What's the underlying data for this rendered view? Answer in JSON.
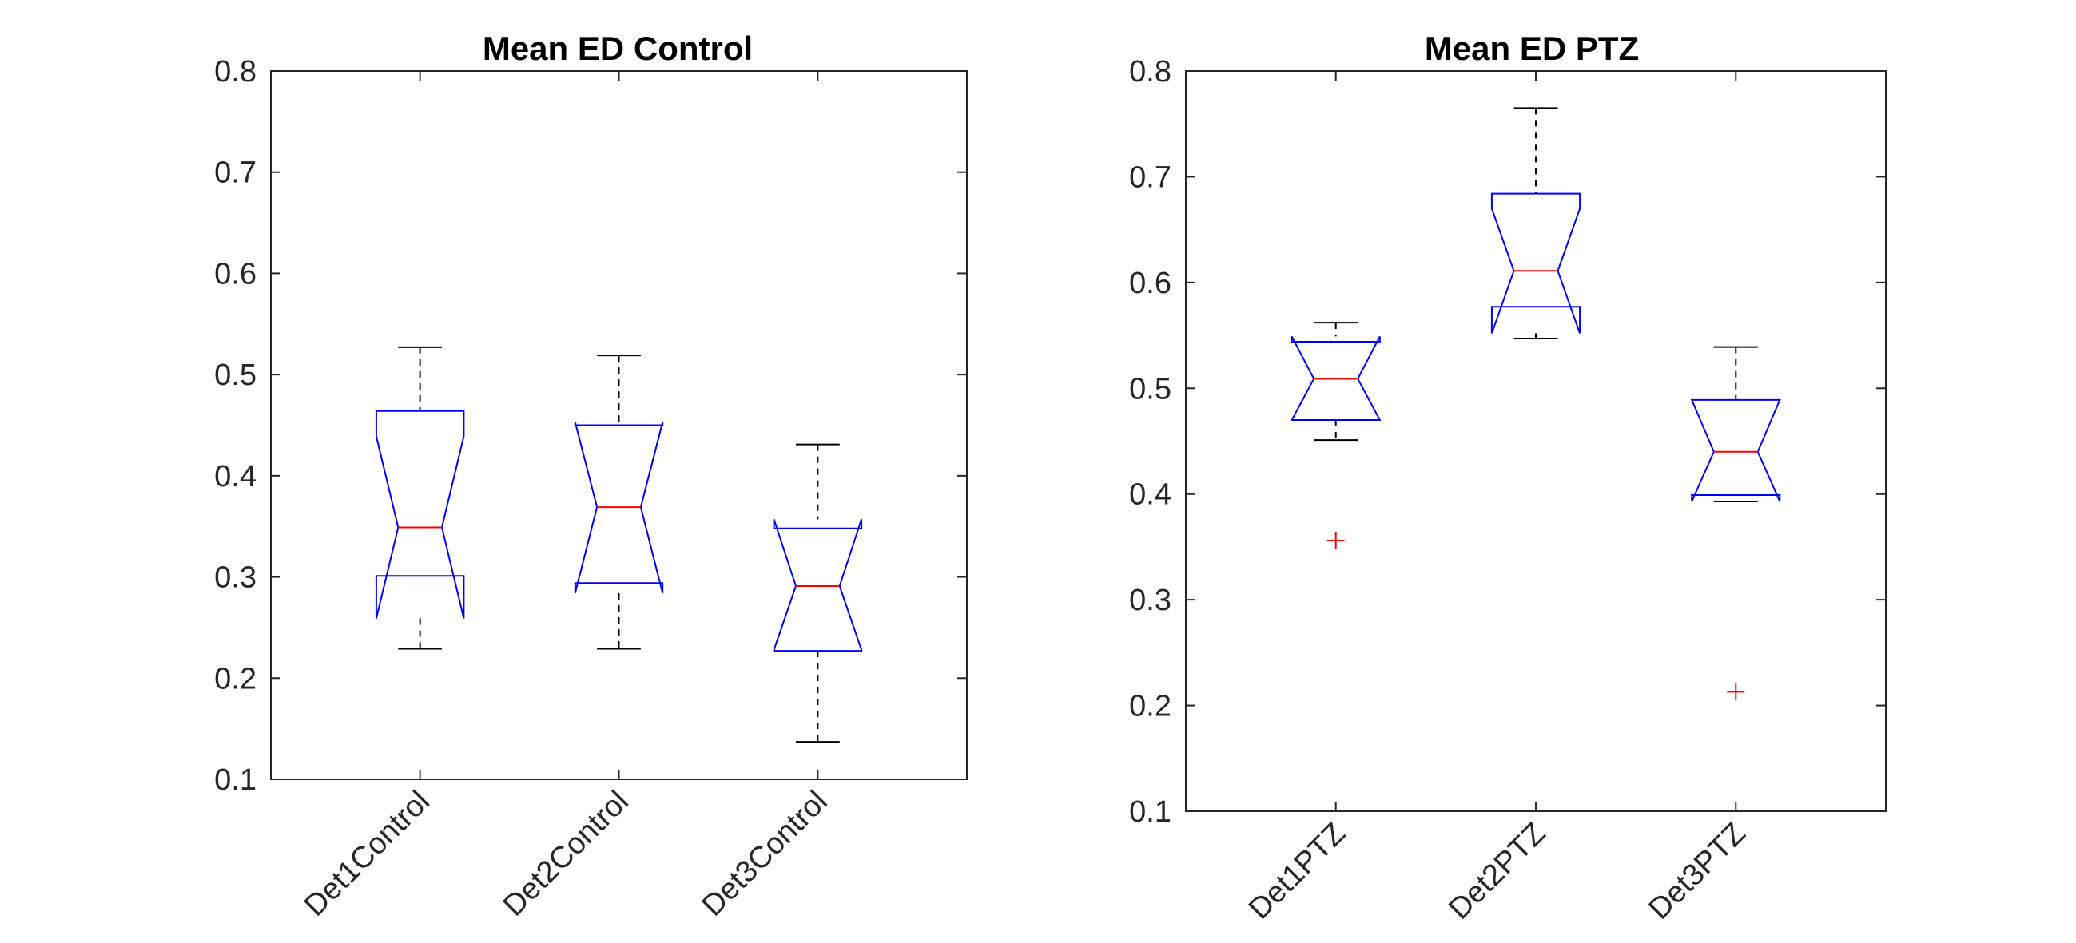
{
  "colors": {
    "box": "#0000ff",
    "median": "#ff0000",
    "whisker": "#000000",
    "outlier": "#ff0000",
    "axes": "#262626",
    "background": "#ffffff"
  },
  "chart_data": [
    {
      "type": "boxplot",
      "notched": true,
      "title": "Mean ED Control",
      "xlabel": "",
      "ylabel": "",
      "ylim": [
        0.1,
        0.8
      ],
      "yticks": [
        "0.1",
        "0.2",
        "0.3",
        "0.4",
        "0.5",
        "0.6",
        "0.7",
        "0.8"
      ],
      "grid": false,
      "categories": [
        "Det1Control",
        "Det2Control",
        "Det3Control"
      ],
      "boxes": [
        {
          "min": 0.229,
          "q1": 0.301,
          "median": 0.349,
          "q3": 0.464,
          "max": 0.527,
          "notch_low": 0.259,
          "notch_high": 0.439,
          "outliers": []
        },
        {
          "min": 0.229,
          "q1": 0.294,
          "median": 0.369,
          "q3": 0.45,
          "max": 0.519,
          "notch_low": 0.284,
          "notch_high": 0.453,
          "outliers": []
        },
        {
          "min": 0.137,
          "q1": 0.227,
          "median": 0.291,
          "q3": 0.348,
          "max": 0.431,
          "notch_low": 0.228,
          "notch_high": 0.357,
          "outliers": []
        }
      ]
    },
    {
      "type": "boxplot",
      "notched": true,
      "title": "Mean ED PTZ",
      "xlabel": "",
      "ylabel": "",
      "ylim": [
        0.1,
        0.8
      ],
      "yticks": [
        "0.1",
        "0.2",
        "0.3",
        "0.4",
        "0.5",
        "0.6",
        "0.7",
        "0.8"
      ],
      "grid": false,
      "categories": [
        "Det1PTZ",
        "Det2PTZ",
        "Det3PTZ"
      ],
      "boxes": [
        {
          "min": 0.451,
          "q1": 0.47,
          "median": 0.509,
          "q3": 0.544,
          "max": 0.562,
          "notch_low": 0.47,
          "notch_high": 0.549,
          "outliers": [
            0.356
          ]
        },
        {
          "min": 0.547,
          "q1": 0.577,
          "median": 0.611,
          "q3": 0.684,
          "max": 0.765,
          "notch_low": 0.552,
          "notch_high": 0.67,
          "outliers": []
        },
        {
          "min": 0.393,
          "q1": 0.399,
          "median": 0.44,
          "q3": 0.489,
          "max": 0.539,
          "notch_low": 0.393,
          "notch_high": 0.489,
          "outliers": [
            0.213
          ]
        }
      ]
    }
  ]
}
